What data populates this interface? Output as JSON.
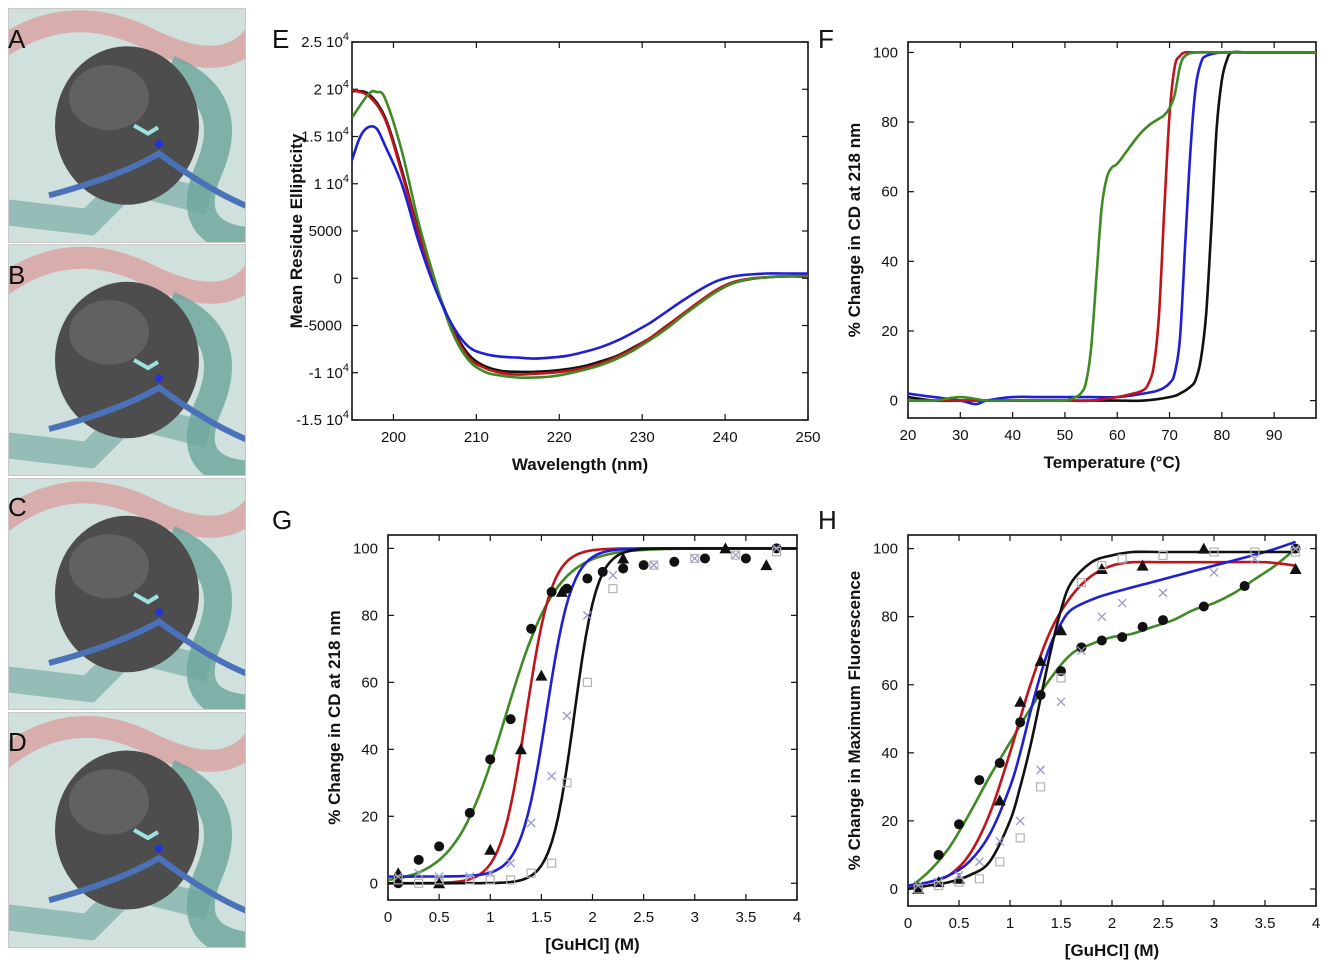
{
  "panel_letters": {
    "A": "A",
    "B": "B",
    "C": "C",
    "D": "D",
    "E": "E",
    "F": "F",
    "G": "G",
    "H": "H"
  },
  "colors": {
    "black": "#111111",
    "red": "#c0141b",
    "blue": "#1f1fd6",
    "green": "#3f8a25",
    "surface": "#4d4d4d",
    "ribbon_pink": "#d9a5a5",
    "ribbon_teal": "#6aa59c",
    "loop_blue": "#4b72b8",
    "ligand": "#9fe0e0"
  },
  "chart_data": [
    {
      "id": "E",
      "type": "line",
      "xlabel": "Wavelength (nm)",
      "ylabel": "Mean Residue Ellipticity",
      "xlim": [
        195,
        250
      ],
      "ylim": [
        -15000,
        25000
      ],
      "xticks": [
        200,
        210,
        220,
        230,
        240,
        250
      ],
      "yticks": [
        {
          "v": 25000,
          "t": "2.5 10",
          "sup": "4"
        },
        {
          "v": 20000,
          "t": "2 10",
          "sup": "4"
        },
        {
          "v": 15000,
          "t": "1.5 10",
          "sup": "4"
        },
        {
          "v": 10000,
          "t": "1 10",
          "sup": "4"
        },
        {
          "v": 5000,
          "t": "5000",
          "sup": ""
        },
        {
          "v": 0,
          "t": "0",
          "sup": ""
        },
        {
          "v": -5000,
          "t": "-5000",
          "sup": ""
        },
        {
          "v": -10000,
          "t": "-1 10",
          "sup": "4"
        },
        {
          "v": -15000,
          "t": "-1.5 10",
          "sup": "4"
        }
      ],
      "series": [
        {
          "color": "black",
          "x": [
            195,
            197,
            199,
            201,
            203,
            205,
            207,
            209,
            211,
            213,
            215,
            217,
            219,
            221,
            223,
            225,
            227,
            229,
            231,
            233,
            235,
            237,
            239,
            241,
            243,
            245,
            247,
            249,
            250
          ],
          "y": [
            19800,
            19500,
            17000,
            11500,
            5000,
            -500,
            -5000,
            -8000,
            -9300,
            -9800,
            -9900,
            -9900,
            -9800,
            -9600,
            -9300,
            -8800,
            -8200,
            -7300,
            -6300,
            -5000,
            -3800,
            -2500,
            -1300,
            -500,
            -100,
            100,
            200,
            200,
            200
          ]
        },
        {
          "color": "red",
          "x": [
            195,
            197,
            199,
            201,
            203,
            205,
            207,
            209,
            211,
            213,
            215,
            217,
            219,
            221,
            223,
            225,
            227,
            229,
            231,
            233,
            235,
            237,
            239,
            241,
            243,
            245,
            247,
            249,
            250
          ],
          "y": [
            19900,
            19300,
            16800,
            11200,
            4800,
            -600,
            -5200,
            -8300,
            -9500,
            -10000,
            -10200,
            -10100,
            -10000,
            -9800,
            -9500,
            -9000,
            -8300,
            -7400,
            -6300,
            -5000,
            -3700,
            -2400,
            -1200,
            -400,
            -50,
            100,
            200,
            200,
            200
          ]
        },
        {
          "color": "green",
          "x": [
            195,
            197,
            198,
            199,
            201,
            203,
            205,
            207,
            209,
            211,
            213,
            215,
            217,
            219,
            221,
            223,
            225,
            227,
            229,
            231,
            233,
            235,
            237,
            239,
            241,
            243,
            245,
            247,
            249,
            250
          ],
          "y": [
            17000,
            19500,
            19700,
            19000,
            13500,
            6000,
            -200,
            -5500,
            -8600,
            -9900,
            -10300,
            -10500,
            -10500,
            -10400,
            -10100,
            -9700,
            -9200,
            -8500,
            -7600,
            -6500,
            -5300,
            -3900,
            -2600,
            -1400,
            -500,
            -100,
            100,
            200,
            300,
            300
          ]
        },
        {
          "color": "blue",
          "x": [
            195,
            196,
            197,
            198,
            199,
            201,
            203,
            205,
            207,
            209,
            211,
            213,
            215,
            217,
            219,
            221,
            223,
            225,
            227,
            229,
            231,
            233,
            235,
            237,
            239,
            241,
            243,
            245,
            247,
            249,
            250
          ],
          "y": [
            12500,
            15000,
            16000,
            15800,
            14000,
            10000,
            4000,
            -1000,
            -4800,
            -7200,
            -8000,
            -8300,
            -8400,
            -8500,
            -8400,
            -8200,
            -7800,
            -7300,
            -6600,
            -5700,
            -4700,
            -3500,
            -2300,
            -1200,
            -300,
            200,
            400,
            500,
            500,
            500,
            500
          ]
        }
      ]
    },
    {
      "id": "F",
      "type": "line",
      "xlabel": "Temperature (°C)",
      "ylabel": "% Change in CD at 218 nm",
      "xlim": [
        20,
        98
      ],
      "ylim": [
        -5,
        103
      ],
      "xticks": [
        20,
        30,
        40,
        50,
        60,
        70,
        80,
        90
      ],
      "yticks": [
        0,
        20,
        40,
        60,
        80,
        100
      ],
      "series": [
        {
          "color": "black",
          "x": [
            20,
            25,
            30,
            35,
            40,
            45,
            50,
            55,
            60,
            65,
            70,
            72,
            74,
            75,
            76,
            77,
            78,
            79,
            80,
            81,
            82,
            85,
            90,
            95,
            98
          ],
          "y": [
            1,
            0,
            0,
            0,
            0,
            0,
            0,
            0,
            0,
            0,
            1,
            2,
            4,
            6,
            12,
            25,
            50,
            78,
            92,
            98,
            100,
            100,
            100,
            100,
            100
          ]
        },
        {
          "color": "blue",
          "x": [
            20,
            25,
            30,
            33,
            35,
            40,
            45,
            50,
            55,
            60,
            65,
            68,
            70,
            71,
            72,
            73,
            74,
            75,
            76,
            77,
            80,
            85,
            90,
            95,
            98
          ],
          "y": [
            2,
            1,
            0,
            -1,
            0,
            1,
            1,
            1,
            1,
            1,
            2,
            3,
            5,
            8,
            18,
            45,
            72,
            90,
            97,
            99,
            100,
            100,
            100,
            100,
            100
          ]
        },
        {
          "color": "red",
          "x": [
            20,
            25,
            30,
            35,
            40,
            45,
            50,
            55,
            60,
            63,
            65,
            66,
            67,
            68,
            69,
            70,
            71,
            72,
            73,
            75,
            80,
            85,
            90,
            95,
            98
          ],
          "y": [
            0,
            0,
            0,
            0,
            0,
            0,
            0,
            0,
            1,
            2,
            3,
            5,
            10,
            25,
            55,
            82,
            96,
            99,
            100,
            100,
            100,
            100,
            100,
            100,
            100
          ]
        },
        {
          "color": "green",
          "x": [
            20,
            25,
            30,
            35,
            40,
            45,
            50,
            52,
            53,
            54,
            55,
            56,
            57,
            58,
            59,
            60,
            62,
            64,
            66,
            68,
            69,
            70,
            71,
            72,
            73,
            75,
            80,
            85,
            90,
            95,
            98
          ],
          "y": [
            0,
            0,
            1,
            0,
            0,
            0,
            0,
            1,
            2,
            5,
            15,
            35,
            55,
            64,
            67,
            68,
            72,
            76,
            79,
            81,
            82,
            84,
            88,
            96,
            99,
            100,
            100,
            100,
            100,
            100,
            100
          ]
        }
      ]
    },
    {
      "id": "G",
      "type": "scatter",
      "xlabel": "[GuHCl] (M)",
      "ylabel": "% Change in CD at 218 nm",
      "xlim": [
        0,
        4
      ],
      "ylim": [
        -5,
        104
      ],
      "xticks": [
        0,
        0.5,
        1,
        1.5,
        2,
        2.5,
        3,
        3.5,
        4
      ],
      "xticklabels": [
        "0",
        "0.5",
        "1",
        "1.5",
        "2",
        "2.5",
        "3",
        "3.5",
        "4"
      ],
      "yticks": [
        0,
        20,
        40,
        60,
        80,
        100
      ],
      "fits": [
        {
          "color": "green",
          "midpoint": 1.15,
          "slope": 4.0,
          "low": 0,
          "high": 100
        },
        {
          "color": "red",
          "midpoint": 1.35,
          "slope": 8.0,
          "low": 0,
          "high": 100
        },
        {
          "color": "blue",
          "midpoint": 1.55,
          "slope": 8.0,
          "low": 2,
          "high": 100
        },
        {
          "color": "black",
          "midpoint": 1.82,
          "slope": 9.0,
          "low": 0,
          "high": 100
        }
      ],
      "points": [
        {
          "marker": "circle",
          "x": [
            0.1,
            0.3,
            0.5,
            0.8,
            1.0,
            1.2,
            1.4,
            1.6,
            1.75,
            1.95,
            2.1,
            2.3,
            2.5,
            2.8,
            3.1,
            3.5,
            3.8
          ],
          "y": [
            0,
            7,
            11,
            21,
            37,
            49,
            76,
            87,
            88,
            91,
            93,
            94,
            95,
            96,
            97,
            97,
            100
          ]
        },
        {
          "marker": "triangle",
          "x": [
            0.1,
            0.5,
            1.0,
            1.3,
            1.5,
            1.7,
            2.3,
            3.3,
            3.7
          ],
          "y": [
            3,
            0,
            10,
            40,
            62,
            87,
            97,
            100,
            95
          ]
        },
        {
          "marker": "cross",
          "x": [
            0.1,
            0.3,
            0.5,
            0.8,
            1.0,
            1.2,
            1.4,
            1.6,
            1.75,
            1.95,
            2.2,
            2.6,
            3.0,
            3.4,
            3.8
          ],
          "y": [
            2,
            3,
            2,
            2,
            3,
            6,
            18,
            32,
            50,
            80,
            92,
            95,
            97,
            98,
            100
          ]
        },
        {
          "marker": "square",
          "x": [
            0.1,
            0.3,
            0.5,
            0.8,
            1.0,
            1.2,
            1.4,
            1.6,
            1.75,
            1.95,
            2.2,
            2.6,
            3.0,
            3.4,
            3.8
          ],
          "y": [
            1,
            0,
            1,
            1,
            1,
            1,
            3,
            6,
            30,
            60,
            88,
            95,
            97,
            98,
            99
          ]
        }
      ]
    },
    {
      "id": "H",
      "type": "scatter",
      "xlabel": "[GuHCl] (M)",
      "ylabel": "% Change in Maximum Fluorescence",
      "xlim": [
        0,
        4
      ],
      "ylim": [
        -5,
        104
      ],
      "xticks": [
        0,
        0.5,
        1,
        1.5,
        2,
        2.5,
        3,
        3.5,
        4
      ],
      "xticklabels": [
        "0",
        "0.5",
        "1",
        "1.5",
        "2",
        "2.5",
        "3",
        "3.5",
        "4"
      ],
      "yticks": [
        0,
        20,
        40,
        60,
        80,
        100
      ],
      "curves": [
        {
          "color": "green",
          "x": [
            0,
            0.2,
            0.4,
            0.6,
            0.8,
            1.0,
            1.2,
            1.4,
            1.6,
            1.8,
            2.0,
            2.2,
            2.4,
            2.6,
            2.8,
            3.0,
            3.2,
            3.4,
            3.6,
            3.8
          ],
          "y": [
            0,
            5,
            12,
            22,
            33,
            43,
            53,
            62,
            69,
            72,
            74,
            75,
            77,
            79,
            82,
            84,
            87,
            91,
            95,
            100
          ]
        },
        {
          "color": "red",
          "x": [
            0,
            0.2,
            0.4,
            0.6,
            0.8,
            1.0,
            1.2,
            1.4,
            1.6,
            1.8,
            2.0,
            2.2,
            2.5,
            3.0,
            3.5,
            3.8
          ],
          "y": [
            1,
            2,
            4,
            10,
            22,
            40,
            60,
            76,
            86,
            92,
            95,
            96,
            96,
            96,
            96,
            95
          ]
        },
        {
          "color": "blue",
          "x": [
            0,
            0.2,
            0.4,
            0.6,
            0.8,
            1.0,
            1.1,
            1.2,
            1.3,
            1.4,
            1.5,
            1.6,
            1.8,
            2.0,
            2.5,
            3.0,
            3.5,
            3.8
          ],
          "y": [
            1,
            2,
            4,
            8,
            16,
            30,
            40,
            52,
            63,
            72,
            78,
            82,
            85,
            87,
            91,
            95,
            99,
            102
          ]
        },
        {
          "color": "black",
          "x": [
            0,
            0.2,
            0.4,
            0.6,
            0.8,
            1.0,
            1.1,
            1.2,
            1.3,
            1.4,
            1.5,
            1.6,
            1.8,
            2.0,
            2.2,
            2.5,
            3.0,
            3.5,
            3.8
          ],
          "y": [
            0,
            1,
            2,
            4,
            8,
            20,
            30,
            42,
            56,
            70,
            82,
            90,
            96,
            98,
            99,
            99,
            99,
            99,
            99
          ]
        }
      ],
      "points": [
        {
          "marker": "circle",
          "x": [
            0.1,
            0.3,
            0.5,
            0.7,
            0.9,
            1.1,
            1.3,
            1.5,
            1.7,
            1.9,
            2.1,
            2.3,
            2.5,
            2.9,
            3.3,
            3.8
          ],
          "y": [
            0,
            10,
            19,
            32,
            37,
            49,
            57,
            64,
            71,
            73,
            74,
            77,
            79,
            83,
            89,
            100
          ]
        },
        {
          "marker": "triangle",
          "x": [
            0.1,
            0.3,
            0.5,
            0.9,
            1.1,
            1.3,
            1.5,
            1.9,
            2.3,
            2.9,
            3.8
          ],
          "y": [
            0,
            2,
            3,
            26,
            55,
            67,
            76,
            94,
            95,
            100,
            94
          ]
        },
        {
          "marker": "cross",
          "x": [
            0.1,
            0.3,
            0.5,
            0.7,
            0.9,
            1.1,
            1.3,
            1.5,
            1.7,
            1.9,
            2.1,
            2.5,
            3.0,
            3.4,
            3.8
          ],
          "y": [
            1,
            2,
            4,
            8,
            14,
            20,
            35,
            55,
            70,
            80,
            84,
            87,
            93,
            97,
            100
          ]
        },
        {
          "marker": "square",
          "x": [
            0.1,
            0.3,
            0.5,
            0.7,
            0.9,
            1.1,
            1.3,
            1.5,
            1.7,
            1.9,
            2.1,
            2.5,
            3.0,
            3.4,
            3.8
          ],
          "y": [
            0,
            1,
            2,
            3,
            8,
            15,
            30,
            62,
            90,
            95,
            97,
            98,
            99,
            99,
            99
          ]
        }
      ]
    }
  ]
}
